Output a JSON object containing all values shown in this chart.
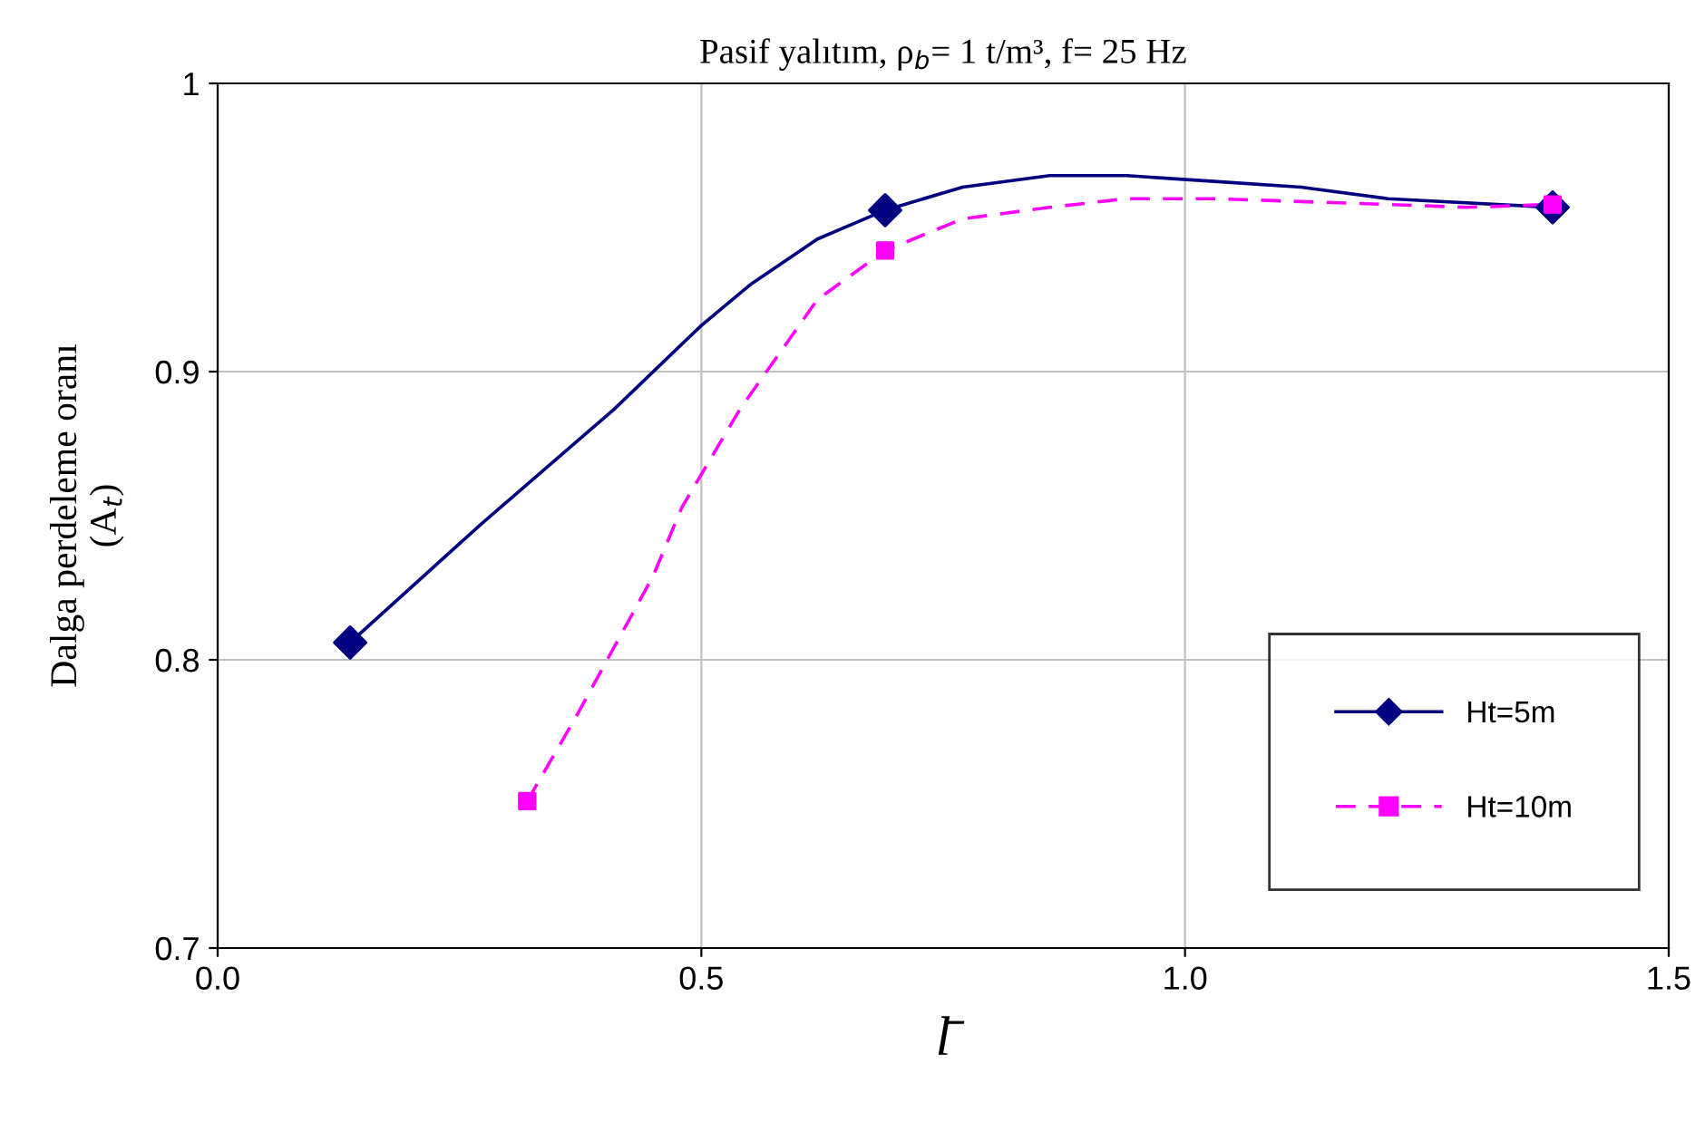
{
  "chart_data": {
    "type": "line",
    "title": "Pasif yalıtım, ρ$_{b}$= 1 t/m³, f= 25 Hz",
    "xlabel": "l̄",
    "ylabel": "Dalga perdeleme oranı\n(A$_{t}$)",
    "xlim": [
      0,
      1.5
    ],
    "xticks": [
      {
        "value": 0,
        "label": "0.0"
      },
      {
        "value": 0.5,
        "label": "0.5"
      },
      {
        "value": 1.0,
        "label": "1.0"
      },
      {
        "value": 1.5,
        "label": "1.5"
      }
    ],
    "ylim": [
      0.7,
      1
    ],
    "yticks": [
      0.7,
      0.8,
      0.9,
      {
        "value": 1,
        "label": "1"
      }
    ],
    "grid": true,
    "legend": "right",
    "series": [
      {
        "name": "Ht=5m",
        "color": "#000080",
        "line_style": "solid",
        "x": [
          0.137,
          0.272,
          0.41,
          0.5,
          0.55,
          0.62,
          0.69,
          0.77,
          0.86,
          0.94,
          1.03,
          1.12,
          1.21,
          1.38
        ],
        "values": [
          0.806,
          0.847,
          0.887,
          0.916,
          0.93,
          0.946,
          0.956,
          0.964,
          0.968,
          0.968,
          0.966,
          0.964,
          0.96,
          0.957
        ]
      },
      {
        "type": "scatter",
        "color": "#000080",
        "marker": "diamond",
        "x": [
          0.137,
          0.69,
          1.38
        ],
        "values": [
          0.806,
          0.956,
          0.957
        ]
      },
      {
        "name": "Ht=10m",
        "color": "#ff00ff",
        "line_style": "dashed",
        "x": [
          0.32,
          0.37,
          0.45,
          0.48,
          0.54,
          0.62,
          0.69,
          0.77,
          0.86,
          0.94,
          1.03,
          1.12,
          1.21,
          1.29,
          1.38
        ],
        "values": [
          0.751,
          0.78,
          0.829,
          0.853,
          0.887,
          0.925,
          0.942,
          0.953,
          0.957,
          0.96,
          0.96,
          0.959,
          0.958,
          0.957,
          0.958
        ]
      },
      {
        "type": "scatter",
        "color": "#ff00ff",
        "marker": "square",
        "x": [
          0.32,
          0.69,
          1.38
        ],
        "values": [
          0.751,
          0.942,
          0.958
        ]
      }
    ]
  }
}
